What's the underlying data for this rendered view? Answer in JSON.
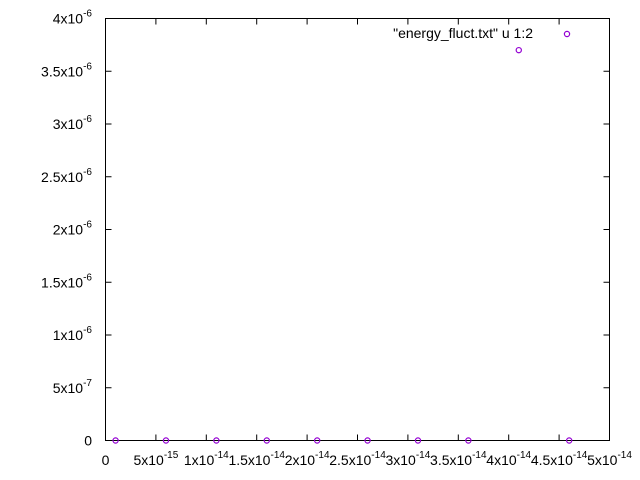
{
  "chart_data": {
    "type": "scatter",
    "title": "",
    "xlabel": "",
    "ylabel": "",
    "xlim": [
      0,
      5e-14
    ],
    "ylim": [
      0,
      4e-06
    ],
    "grid": false,
    "legend_position": "top-right",
    "marker_color": "#9400d3",
    "x_ticks": [
      {
        "value": 0,
        "mant": "0",
        "exp": ""
      },
      {
        "value": 5e-15,
        "mant": "5x10",
        "exp": "-15"
      },
      {
        "value": 1e-14,
        "mant": "1x10",
        "exp": "-14"
      },
      {
        "value": 1.5e-14,
        "mant": "1.5x10",
        "exp": "-14"
      },
      {
        "value": 2e-14,
        "mant": "2x10",
        "exp": "-14"
      },
      {
        "value": 2.5e-14,
        "mant": "2.5x10",
        "exp": "-14"
      },
      {
        "value": 3e-14,
        "mant": "3x10",
        "exp": "-14"
      },
      {
        "value": 3.5e-14,
        "mant": "3.5x10",
        "exp": "-14"
      },
      {
        "value": 4e-14,
        "mant": "4x10",
        "exp": "-14"
      },
      {
        "value": 4.5e-14,
        "mant": "4.5x10",
        "exp": "-14"
      },
      {
        "value": 5e-14,
        "mant": "5x10",
        "exp": "-14"
      }
    ],
    "y_ticks": [
      {
        "value": 0,
        "mant": "0",
        "exp": ""
      },
      {
        "value": 5e-07,
        "mant": "5x10",
        "exp": "-7"
      },
      {
        "value": 1e-06,
        "mant": "1x10",
        "exp": "-6"
      },
      {
        "value": 1.5e-06,
        "mant": "1.5x10",
        "exp": "-6"
      },
      {
        "value": 2e-06,
        "mant": "2x10",
        "exp": "-6"
      },
      {
        "value": 2.5e-06,
        "mant": "2.5x10",
        "exp": "-6"
      },
      {
        "value": 3e-06,
        "mant": "3x10",
        "exp": "-6"
      },
      {
        "value": 3.5e-06,
        "mant": "3.5x10",
        "exp": "-6"
      },
      {
        "value": 4e-06,
        "mant": "4x10",
        "exp": "-6"
      }
    ],
    "series": [
      {
        "name": "\"energy_fluct.txt\" u 1:2",
        "points": [
          {
            "x": 1e-15,
            "y": 0
          },
          {
            "x": 6e-15,
            "y": 0
          },
          {
            "x": 1.1e-14,
            "y": 0
          },
          {
            "x": 1.6e-14,
            "y": 0
          },
          {
            "x": 2.1e-14,
            "y": 0
          },
          {
            "x": 2.6e-14,
            "y": 0
          },
          {
            "x": 3.1e-14,
            "y": 0
          },
          {
            "x": 3.6e-14,
            "y": 0
          },
          {
            "x": 4.1e-14,
            "y": 3.7e-06
          },
          {
            "x": 4.6e-14,
            "y": 0
          }
        ]
      }
    ]
  }
}
